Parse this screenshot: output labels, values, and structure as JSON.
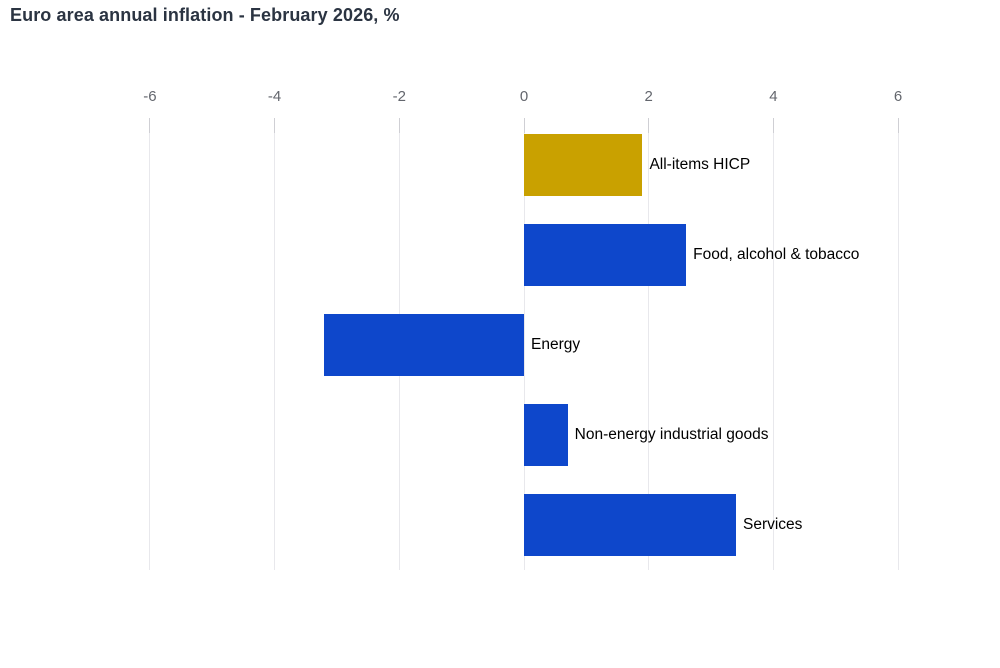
{
  "page": {
    "title": "Euro area annual inflation - February 2026, %"
  },
  "chart_data": {
    "type": "bar",
    "orientation": "horizontal",
    "title": "Euro area annual inflation - February 2026, %",
    "unit": "%",
    "categories": [
      "All-items HICP",
      "Food, alcohol & tobacco",
      "Energy",
      "Non-energy industrial goods",
      "Services"
    ],
    "values": [
      1.9,
      2.6,
      -3.2,
      0.7,
      3.4
    ],
    "bar_colors": [
      "#C9A100",
      "#0E47CB",
      "#0E47CB",
      "#0E47CB",
      "#0E47CB"
    ],
    "xlim": [
      -6,
      6
    ],
    "xticks": [
      -6,
      -4,
      -2,
      0,
      2,
      4,
      6
    ],
    "grid": true,
    "legend": "none",
    "colors": {
      "highlight": "#C9A100",
      "default": "#0E47CB",
      "gridline": "#e8e8ec",
      "tick": "#cfcfd4",
      "axis_label": "#63666d",
      "title": "#2b3442",
      "bar_label": "#000000",
      "background": "#ffffff"
    }
  }
}
